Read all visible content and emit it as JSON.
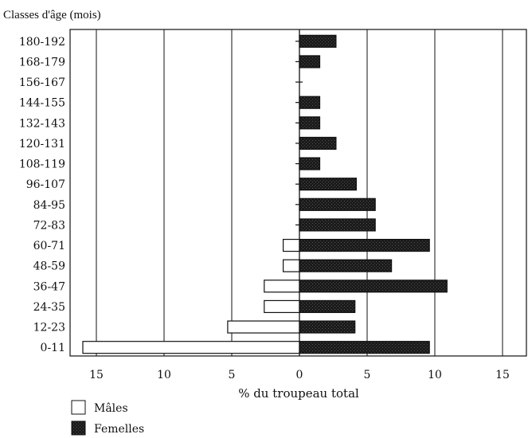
{
  "chart_data": {
    "type": "bar",
    "orientation": "horizontal-population-pyramid",
    "title": "",
    "ylabel": "Classes d'âge (mois)",
    "xlabel": "% du troupeau total",
    "xlim": [
      -16,
      15
    ],
    "x_ticks": [
      "15",
      "10",
      "5",
      "0",
      "5",
      "10",
      "15"
    ],
    "grid": "vertical lines at 5-unit intervals",
    "categories": [
      "180-192",
      "168-179",
      "156-167",
      "144-155",
      "132-143",
      "120-131",
      "108-119",
      "96-107",
      "84-95",
      "72-83",
      "60-71",
      "48-59",
      "36-47",
      "24-35",
      "12-23",
      "0-11"
    ],
    "series": [
      {
        "name": "Mâles",
        "side": "left",
        "color": "#ffffff",
        "values": [
          0,
          0,
          0,
          0,
          0,
          0,
          0,
          0,
          0,
          0,
          1.2,
          1.2,
          2.6,
          2.6,
          5.3,
          16.0
        ]
      },
      {
        "name": "Femelles",
        "side": "right",
        "color": "#1a1a1a",
        "values": [
          2.7,
          1.5,
          0,
          1.5,
          1.5,
          2.7,
          1.5,
          4.2,
          5.6,
          5.6,
          9.6,
          6.8,
          10.9,
          4.1,
          4.1,
          9.6
        ]
      }
    ],
    "legend": {
      "position": "bottom-left",
      "entries": [
        "Mâles",
        "Femelles"
      ]
    }
  }
}
